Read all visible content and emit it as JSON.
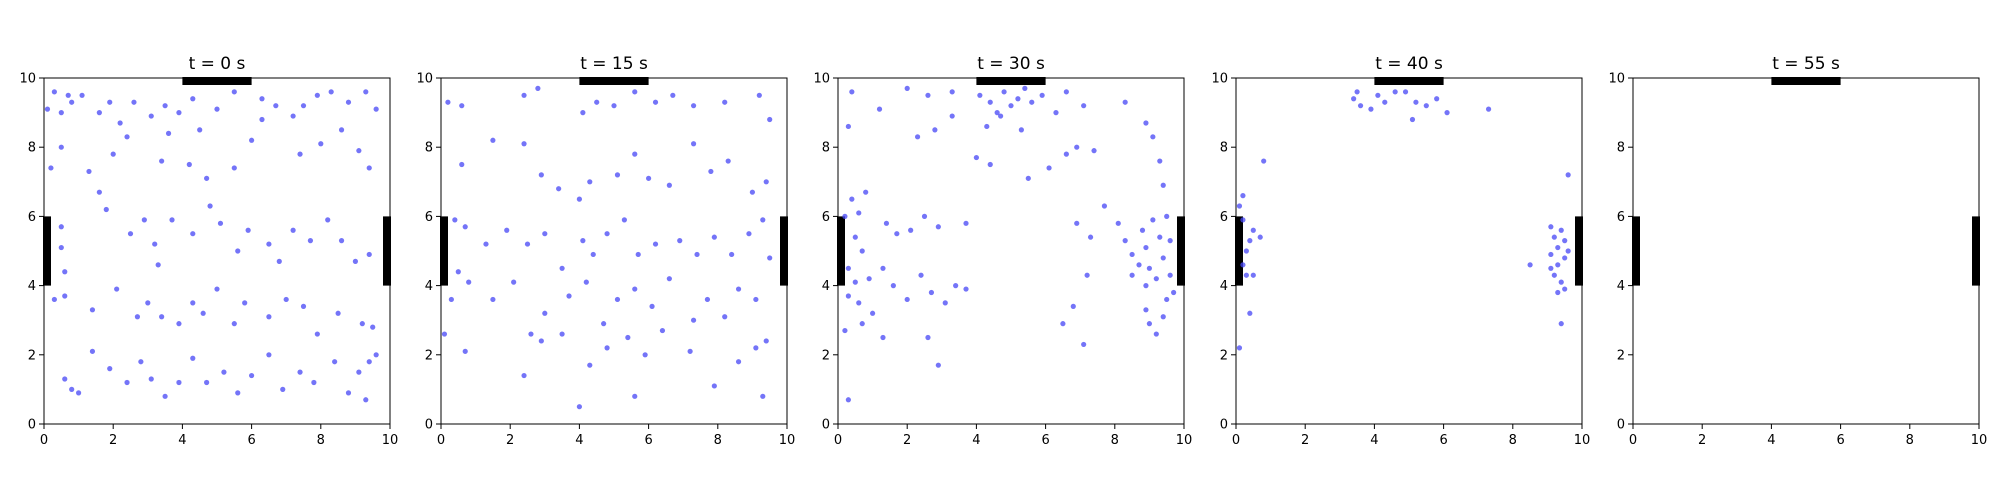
{
  "colors": {
    "points": "#4646f5",
    "exit": "#000000",
    "axis": "#000000"
  },
  "chart_data": [
    {
      "type": "scatter",
      "title": "t = 0 s",
      "xlim": [
        0,
        10
      ],
      "ylim": [
        0,
        10
      ],
      "xticks": [
        "0",
        "2",
        "4",
        "6",
        "8",
        "10"
      ],
      "yticks": [
        "0",
        "2",
        "4",
        "6",
        "8",
        "10"
      ],
      "exits": [
        "top",
        "left",
        "right"
      ],
      "points": [
        [
          0.1,
          9.1
        ],
        [
          0.3,
          9.6
        ],
        [
          0.5,
          9.0
        ],
        [
          0.7,
          9.5
        ],
        [
          0.8,
          9.3
        ],
        [
          1.1,
          9.5
        ],
        [
          1.6,
          9.0
        ],
        [
          1.9,
          9.3
        ],
        [
          2.2,
          8.7
        ],
        [
          2.6,
          9.3
        ],
        [
          3.1,
          8.9
        ],
        [
          3.5,
          9.2
        ],
        [
          3.9,
          9.0
        ],
        [
          4.3,
          9.4
        ],
        [
          5.0,
          9.1
        ],
        [
          5.5,
          9.6
        ],
        [
          6.3,
          9.4
        ],
        [
          6.7,
          9.2
        ],
        [
          7.5,
          9.2
        ],
        [
          7.9,
          9.5
        ],
        [
          8.3,
          9.6
        ],
        [
          8.8,
          9.3
        ],
        [
          9.3,
          9.6
        ],
        [
          9.6,
          9.1
        ],
        [
          0.2,
          7.4
        ],
        [
          0.5,
          8.0
        ],
        [
          1.3,
          7.3
        ],
        [
          1.6,
          6.7
        ],
        [
          2.0,
          7.8
        ],
        [
          2.4,
          8.3
        ],
        [
          3.4,
          7.6
        ],
        [
          3.6,
          8.4
        ],
        [
          4.2,
          7.5
        ],
        [
          4.5,
          8.5
        ],
        [
          4.7,
          7.1
        ],
        [
          5.5,
          7.4
        ],
        [
          6.0,
          8.2
        ],
        [
          6.3,
          8.8
        ],
        [
          7.2,
          8.9
        ],
        [
          7.4,
          7.8
        ],
        [
          8.0,
          8.1
        ],
        [
          8.6,
          8.5
        ],
        [
          9.1,
          7.9
        ],
        [
          9.4,
          7.4
        ],
        [
          0.5,
          5.7
        ],
        [
          0.5,
          5.1
        ],
        [
          0.6,
          4.4
        ],
        [
          1.8,
          6.2
        ],
        [
          2.5,
          5.5
        ],
        [
          2.9,
          5.9
        ],
        [
          3.2,
          5.2
        ],
        [
          3.3,
          4.6
        ],
        [
          3.7,
          5.9
        ],
        [
          4.3,
          5.5
        ],
        [
          4.8,
          6.3
        ],
        [
          5.1,
          5.8
        ],
        [
          5.6,
          5.0
        ],
        [
          5.9,
          5.6
        ],
        [
          6.5,
          5.2
        ],
        [
          6.8,
          4.7
        ],
        [
          7.2,
          5.6
        ],
        [
          7.7,
          5.3
        ],
        [
          8.2,
          5.9
        ],
        [
          8.6,
          5.3
        ],
        [
          9.0,
          4.7
        ],
        [
          9.4,
          4.9
        ],
        [
          0.3,
          3.6
        ],
        [
          0.6,
          3.7
        ],
        [
          1.4,
          3.3
        ],
        [
          2.1,
          3.9
        ],
        [
          2.7,
          3.1
        ],
        [
          3.0,
          3.5
        ],
        [
          3.4,
          3.1
        ],
        [
          3.9,
          2.9
        ],
        [
          4.3,
          3.5
        ],
        [
          4.6,
          3.2
        ],
        [
          5.0,
          3.9
        ],
        [
          5.5,
          2.9
        ],
        [
          5.8,
          3.5
        ],
        [
          6.5,
          3.1
        ],
        [
          7.0,
          3.6
        ],
        [
          7.5,
          3.4
        ],
        [
          7.9,
          2.6
        ],
        [
          8.5,
          3.2
        ],
        [
          9.2,
          2.9
        ],
        [
          9.5,
          2.8
        ],
        [
          0.6,
          1.3
        ],
        [
          0.8,
          1.0
        ],
        [
          1.0,
          0.9
        ],
        [
          1.4,
          2.1
        ],
        [
          1.9,
          1.6
        ],
        [
          2.4,
          1.2
        ],
        [
          2.8,
          1.8
        ],
        [
          3.1,
          1.3
        ],
        [
          3.5,
          0.8
        ],
        [
          3.9,
          1.2
        ],
        [
          4.3,
          1.9
        ],
        [
          4.7,
          1.2
        ],
        [
          5.2,
          1.5
        ],
        [
          5.6,
          0.9
        ],
        [
          6.0,
          1.4
        ],
        [
          6.5,
          2.0
        ],
        [
          6.9,
          1.0
        ],
        [
          7.4,
          1.5
        ],
        [
          7.8,
          1.2
        ],
        [
          8.4,
          1.8
        ],
        [
          8.8,
          0.9
        ],
        [
          9.1,
          1.5
        ],
        [
          9.3,
          0.7
        ],
        [
          9.4,
          1.8
        ],
        [
          9.6,
          2.0
        ]
      ]
    },
    {
      "type": "scatter",
      "title": "t = 15 s",
      "xlim": [
        0,
        10
      ],
      "ylim": [
        0,
        10
      ],
      "xticks": [
        "0",
        "2",
        "4",
        "6",
        "8",
        "10"
      ],
      "yticks": [
        "0",
        "2",
        "4",
        "6",
        "8",
        "10"
      ],
      "exits": [
        "top",
        "left",
        "right"
      ],
      "points": [
        [
          0.2,
          9.3
        ],
        [
          0.6,
          9.2
        ],
        [
          2.4,
          9.5
        ],
        [
          2.8,
          9.7
        ],
        [
          4.1,
          9.0
        ],
        [
          4.5,
          9.3
        ],
        [
          5.0,
          9.2
        ],
        [
          5.6,
          9.6
        ],
        [
          6.2,
          9.3
        ],
        [
          6.7,
          9.5
        ],
        [
          7.3,
          9.2
        ],
        [
          8.2,
          9.3
        ],
        [
          9.2,
          9.5
        ],
        [
          9.5,
          8.8
        ],
        [
          0.6,
          7.5
        ],
        [
          1.5,
          8.2
        ],
        [
          2.4,
          8.1
        ],
        [
          2.9,
          7.2
        ],
        [
          3.4,
          6.8
        ],
        [
          4.0,
          6.5
        ],
        [
          4.3,
          7.0
        ],
        [
          5.1,
          7.2
        ],
        [
          5.6,
          7.8
        ],
        [
          6.0,
          7.1
        ],
        [
          6.6,
          6.9
        ],
        [
          7.3,
          8.1
        ],
        [
          7.8,
          7.3
        ],
        [
          8.3,
          7.6
        ],
        [
          9.0,
          6.7
        ],
        [
          9.4,
          7.0
        ],
        [
          0.4,
          5.9
        ],
        [
          0.7,
          5.7
        ],
        [
          1.3,
          5.2
        ],
        [
          1.9,
          5.6
        ],
        [
          2.5,
          5.2
        ],
        [
          3.0,
          5.5
        ],
        [
          3.5,
          4.5
        ],
        [
          4.1,
          5.3
        ],
        [
          4.4,
          4.9
        ],
        [
          4.8,
          5.5
        ],
        [
          5.3,
          5.9
        ],
        [
          5.7,
          4.9
        ],
        [
          6.2,
          5.2
        ],
        [
          6.9,
          5.3
        ],
        [
          7.4,
          4.9
        ],
        [
          7.9,
          5.4
        ],
        [
          8.4,
          4.9
        ],
        [
          8.9,
          5.5
        ],
        [
          9.3,
          5.9
        ],
        [
          9.5,
          4.8
        ],
        [
          0.3,
          3.6
        ],
        [
          0.5,
          4.4
        ],
        [
          0.8,
          4.1
        ],
        [
          1.5,
          3.6
        ],
        [
          2.1,
          4.1
        ],
        [
          2.6,
          2.6
        ],
        [
          3.0,
          3.2
        ],
        [
          3.7,
          3.7
        ],
        [
          4.2,
          4.1
        ],
        [
          4.7,
          2.9
        ],
        [
          5.1,
          3.6
        ],
        [
          5.6,
          3.9
        ],
        [
          6.1,
          3.4
        ],
        [
          6.6,
          4.2
        ],
        [
          7.3,
          3.0
        ],
        [
          7.7,
          3.6
        ],
        [
          8.2,
          3.1
        ],
        [
          8.6,
          3.9
        ],
        [
          9.1,
          3.6
        ],
        [
          9.4,
          2.4
        ],
        [
          0.1,
          2.6
        ],
        [
          0.7,
          2.1
        ],
        [
          2.4,
          1.4
        ],
        [
          2.9,
          2.4
        ],
        [
          3.5,
          2.6
        ],
        [
          4.3,
          1.7
        ],
        [
          4.8,
          2.2
        ],
        [
          5.4,
          2.5
        ],
        [
          5.9,
          2.0
        ],
        [
          6.4,
          2.7
        ],
        [
          7.2,
          2.1
        ],
        [
          7.9,
          1.1
        ],
        [
          8.6,
          1.8
        ],
        [
          9.3,
          0.8
        ],
        [
          4.0,
          0.5
        ],
        [
          9.1,
          2.2
        ],
        [
          5.6,
          0.8
        ]
      ]
    },
    {
      "type": "scatter",
      "title": "t = 30 s",
      "xlim": [
        0,
        10
      ],
      "ylim": [
        0,
        10
      ],
      "xticks": [
        "0",
        "2",
        "4",
        "6",
        "8",
        "10"
      ],
      "yticks": [
        "0",
        "2",
        "4",
        "6",
        "8",
        "10"
      ],
      "exits": [
        "top",
        "left",
        "right"
      ],
      "points": [
        [
          0.4,
          9.6
        ],
        [
          1.2,
          9.1
        ],
        [
          2.0,
          9.7
        ],
        [
          2.6,
          9.5
        ],
        [
          3.3,
          9.6
        ],
        [
          4.1,
          9.5
        ],
        [
          4.4,
          9.3
        ],
        [
          4.6,
          9.0
        ],
        [
          4.8,
          9.6
        ],
        [
          5.0,
          9.2
        ],
        [
          5.2,
          9.4
        ],
        [
          5.4,
          9.7
        ],
        [
          5.6,
          9.3
        ],
        [
          5.9,
          9.5
        ],
        [
          6.3,
          9.0
        ],
        [
          6.6,
          9.6
        ],
        [
          4.3,
          8.6
        ],
        [
          4.7,
          8.9
        ],
        [
          5.3,
          8.5
        ],
        [
          0.3,
          8.6
        ],
        [
          2.3,
          8.3
        ],
        [
          2.8,
          8.5
        ],
        [
          3.3,
          8.9
        ],
        [
          4.0,
          7.7
        ],
        [
          4.4,
          7.5
        ],
        [
          5.5,
          7.1
        ],
        [
          6.1,
          7.4
        ],
        [
          6.6,
          7.8
        ],
        [
          6.9,
          8.0
        ],
        [
          7.1,
          9.2
        ],
        [
          7.4,
          7.9
        ],
        [
          8.3,
          9.3
        ],
        [
          8.9,
          8.7
        ],
        [
          9.1,
          8.3
        ],
        [
          9.3,
          7.6
        ],
        [
          9.4,
          6.9
        ],
        [
          0.2,
          6.0
        ],
        [
          0.4,
          6.5
        ],
        [
          0.6,
          6.1
        ],
        [
          0.8,
          6.7
        ],
        [
          0.5,
          5.4
        ],
        [
          0.7,
          5.0
        ],
        [
          0.3,
          4.5
        ],
        [
          0.5,
          4.1
        ],
        [
          0.9,
          4.2
        ],
        [
          1.4,
          5.8
        ],
        [
          1.7,
          5.5
        ],
        [
          2.1,
          5.6
        ],
        [
          2.5,
          6.0
        ],
        [
          2.9,
          5.7
        ],
        [
          3.7,
          5.8
        ],
        [
          6.9,
          5.8
        ],
        [
          7.3,
          5.4
        ],
        [
          7.7,
          6.3
        ],
        [
          8.1,
          5.8
        ],
        [
          8.3,
          5.3
        ],
        [
          8.5,
          4.9
        ],
        [
          8.7,
          4.6
        ],
        [
          8.8,
          5.6
        ],
        [
          8.9,
          5.1
        ],
        [
          9.0,
          4.5
        ],
        [
          9.1,
          5.9
        ],
        [
          9.2,
          4.2
        ],
        [
          9.3,
          5.4
        ],
        [
          9.4,
          4.8
        ],
        [
          9.5,
          6.0
        ],
        [
          9.6,
          4.3
        ],
        [
          9.6,
          5.3
        ],
        [
          9.7,
          3.8
        ],
        [
          9.4,
          3.1
        ],
        [
          9.2,
          2.6
        ],
        [
          8.9,
          3.3
        ],
        [
          8.5,
          4.3
        ],
        [
          8.9,
          4.0
        ],
        [
          9.0,
          2.9
        ],
        [
          9.5,
          3.6
        ],
        [
          0.3,
          3.7
        ],
        [
          0.6,
          3.5
        ],
        [
          1.0,
          3.2
        ],
        [
          1.3,
          4.5
        ],
        [
          1.6,
          4.0
        ],
        [
          2.0,
          3.6
        ],
        [
          2.4,
          4.3
        ],
        [
          2.7,
          3.8
        ],
        [
          3.1,
          3.5
        ],
        [
          3.4,
          4.0
        ],
        [
          3.7,
          3.9
        ],
        [
          2.6,
          2.5
        ],
        [
          2.9,
          1.7
        ],
        [
          1.3,
          2.5
        ],
        [
          0.7,
          2.9
        ],
        [
          0.2,
          2.7
        ],
        [
          0.3,
          0.7
        ],
        [
          6.8,
          3.4
        ],
        [
          7.1,
          2.3
        ],
        [
          6.5,
          2.9
        ],
        [
          7.2,
          4.3
        ]
      ]
    },
    {
      "type": "scatter",
      "title": "t = 40 s",
      "xlim": [
        0,
        10
      ],
      "ylim": [
        0,
        10
      ],
      "xticks": [
        "0",
        "2",
        "4",
        "6",
        "8",
        "10"
      ],
      "yticks": [
        "0",
        "2",
        "4",
        "6",
        "8",
        "10"
      ],
      "exits": [
        "top",
        "left",
        "right"
      ],
      "points": [
        [
          3.4,
          9.4
        ],
        [
          3.6,
          9.2
        ],
        [
          3.9,
          9.1
        ],
        [
          4.1,
          9.5
        ],
        [
          4.3,
          9.3
        ],
        [
          4.6,
          9.6
        ],
        [
          4.9,
          9.6
        ],
        [
          5.2,
          9.3
        ],
        [
          5.5,
          9.2
        ],
        [
          5.8,
          9.4
        ],
        [
          6.1,
          9.0
        ],
        [
          5.1,
          8.8
        ],
        [
          7.3,
          9.1
        ],
        [
          3.5,
          9.6
        ],
        [
          0.1,
          6.3
        ],
        [
          0.2,
          6.6
        ],
        [
          0.2,
          5.9
        ],
        [
          0.4,
          5.3
        ],
        [
          0.5,
          5.6
        ],
        [
          0.7,
          5.4
        ],
        [
          0.2,
          4.6
        ],
        [
          0.3,
          4.3
        ],
        [
          0.5,
          4.3
        ],
        [
          0.4,
          3.2
        ],
        [
          0.1,
          2.2
        ],
        [
          0.8,
          7.6
        ],
        [
          0.3,
          5.0
        ],
        [
          8.5,
          4.6
        ],
        [
          9.1,
          5.7
        ],
        [
          9.2,
          5.4
        ],
        [
          9.3,
          5.1
        ],
        [
          9.1,
          4.9
        ],
        [
          9.4,
          5.6
        ],
        [
          9.5,
          4.8
        ],
        [
          9.2,
          4.3
        ],
        [
          9.4,
          4.1
        ],
        [
          9.6,
          5.0
        ],
        [
          9.3,
          3.8
        ],
        [
          9.5,
          3.9
        ],
        [
          9.1,
          4.5
        ],
        [
          9.4,
          2.9
        ],
        [
          9.6,
          7.2
        ],
        [
          9.3,
          4.6
        ],
        [
          9.5,
          5.3
        ]
      ]
    },
    {
      "type": "scatter",
      "title": "t = 55 s",
      "xlim": [
        0,
        10
      ],
      "ylim": [
        0,
        10
      ],
      "xticks": [
        "0",
        "2",
        "4",
        "6",
        "8",
        "10"
      ],
      "yticks": [
        "0",
        "2",
        "4",
        "6",
        "8",
        "10"
      ],
      "exits": [
        "top",
        "left",
        "right"
      ],
      "points": []
    }
  ]
}
